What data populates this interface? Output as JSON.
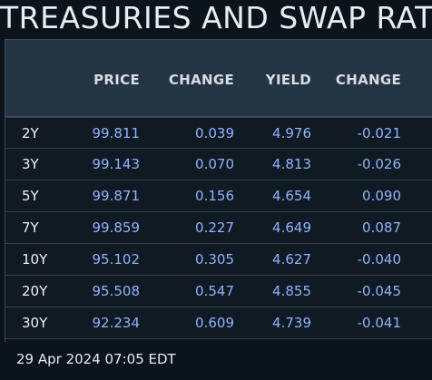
{
  "title": "TREASURIES AND SWAP RAT",
  "columns": [
    "PRICE",
    "CHANGE",
    "YIELD",
    "CHANGE"
  ],
  "rows": [
    {
      "tenor": "2Y",
      "price": "99.811",
      "price_change": "0.039",
      "yield": "4.976",
      "yield_change": "-0.021"
    },
    {
      "tenor": "3Y",
      "price": "99.143",
      "price_change": "0.070",
      "yield": "4.813",
      "yield_change": "-0.026"
    },
    {
      "tenor": "5Y",
      "price": "99.871",
      "price_change": "0.156",
      "yield": "4.654",
      "yield_change": "0.090"
    },
    {
      "tenor": "7Y",
      "price": "99.859",
      "price_change": "0.227",
      "yield": "4.649",
      "yield_change": "0.087"
    },
    {
      "tenor": "10Y",
      "price": "95.102",
      "price_change": "0.305",
      "yield": "4.627",
      "yield_change": "-0.040"
    },
    {
      "tenor": "20Y",
      "price": "95.508",
      "price_change": "0.547",
      "yield": "4.855",
      "yield_change": "-0.045"
    },
    {
      "tenor": "30Y",
      "price": "92.234",
      "price_change": "0.609",
      "yield": "4.739",
      "yield_change": "-0.041"
    }
  ],
  "timestamp": "29 Apr 2024 07:05 EDT",
  "colors": {
    "background": "#0c141b",
    "header": "#243442",
    "value": "#8fb3ff"
  }
}
